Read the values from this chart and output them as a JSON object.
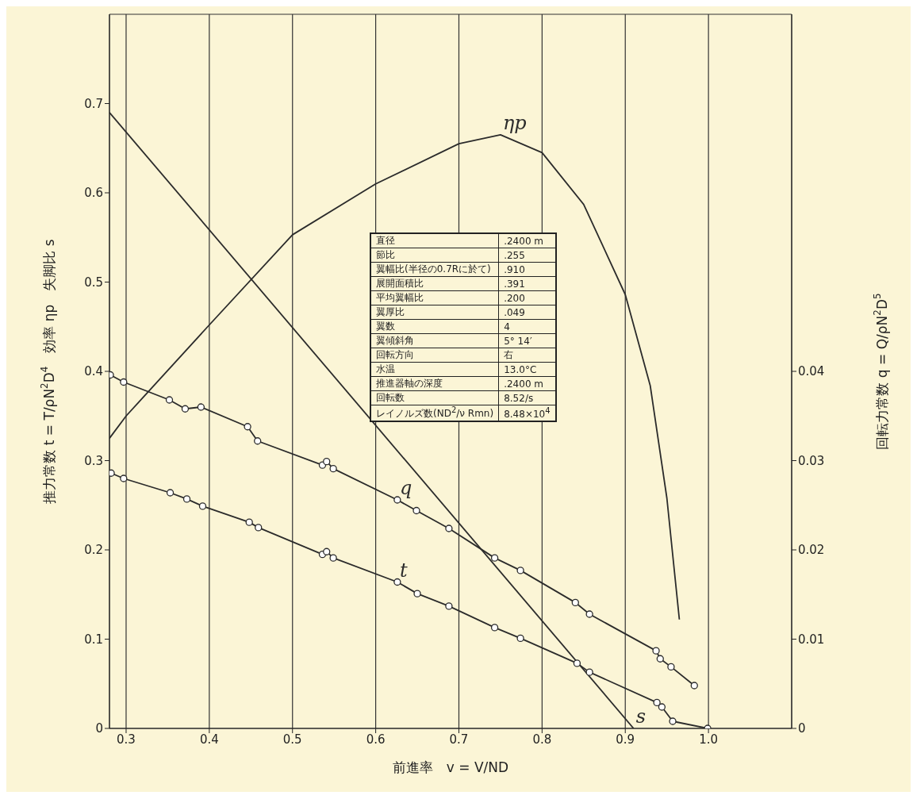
{
  "chart_data": {
    "type": "line",
    "xlabel": "前進率　v = V/ND",
    "ylabel": "推力常数 t = T/ρN$^{2}$D$^{4}$　効率 ηp　失脚比 s",
    "y2label": "回転力常数 q = Q/ρN$^{2}$D$^{5}$",
    "xlim": [
      0.28,
      1.1
    ],
    "xticks": [
      0.3,
      0.4,
      0.5,
      0.6,
      0.7,
      0.8,
      0.9,
      {
        "value": 1,
        "label": "1.0"
      }
    ],
    "ylim": [
      0,
      0.8
    ],
    "yticks": [
      0,
      0.1,
      0.2,
      0.3,
      0.4,
      0.5,
      0.6,
      0.7
    ],
    "y2lim": [
      0,
      0.08
    ],
    "y2ticks": [
      0,
      0.01,
      0.02,
      0.03,
      0.04
    ],
    "grid": true,
    "series": [
      {
        "name": "ηp",
        "color": "#2b2b2b",
        "marker": "none",
        "x": [
          0.28,
          0.3,
          0.4,
          0.5,
          0.6,
          0.7,
          0.75,
          0.8,
          0.85,
          0.9,
          0.93,
          0.95,
          0.965
        ],
        "values": [
          0.325,
          0.35,
          0.452,
          0.553,
          0.61,
          0.655,
          0.665,
          0.645,
          0.587,
          0.486,
          0.384,
          0.258,
          0.122
        ]
      },
      {
        "name": "s",
        "color": "#2b2b2b",
        "marker": "none",
        "x": [
          0.28,
          0.91
        ],
        "values": [
          0.69,
          0.0
        ]
      },
      {
        "name": "q",
        "color": "#2b2b2b",
        "marker": "circle",
        "axis": "y2",
        "x": [
          0.281,
          0.297,
          0.352,
          0.371,
          0.39,
          0.446,
          0.458,
          0.536,
          0.541,
          0.549,
          0.626,
          0.649,
          0.688,
          0.743,
          0.774,
          0.84,
          0.857,
          0.937,
          0.942,
          0.955,
          0.983
        ],
        "values": [
          0.0396,
          0.0388,
          0.0368,
          0.0358,
          0.036,
          0.0338,
          0.0322,
          0.0295,
          0.0299,
          0.0291,
          0.0256,
          0.0244,
          0.0224,
          0.0191,
          0.0177,
          0.0141,
          0.0128,
          0.0087,
          0.0078,
          0.0069,
          0.0048
        ]
      },
      {
        "name": "t",
        "color": "#2b2b2b",
        "marker": "circle",
        "x": [
          0.282,
          0.297,
          0.353,
          0.373,
          0.392,
          0.448,
          0.459,
          0.536,
          0.541,
          0.549,
          0.626,
          0.65,
          0.688,
          0.743,
          0.774,
          0.842,
          0.857,
          0.938,
          0.944,
          0.957,
          0.999
        ],
        "values": [
          0.286,
          0.28,
          0.264,
          0.257,
          0.249,
          0.231,
          0.225,
          0.195,
          0.198,
          0.191,
          0.164,
          0.151,
          0.137,
          0.113,
          0.101,
          0.073,
          0.063,
          0.029,
          0.024,
          0.008,
          0.0
        ]
      }
    ],
    "annotations": [
      "直径",
      ".2400 m",
      "節比",
      ".255",
      "翼幅比(半径の0.7Rに於て)",
      ".910",
      "展開面積比",
      ".391",
      "平均翼幅比",
      ".200",
      "翼厚比",
      ".049",
      "翼数",
      "4",
      "翼傾斜角",
      "5° 14′",
      "回転方向",
      "右",
      "水温",
      "13.0°C",
      "推進器軸の深度",
      ".2400 m",
      "回転数",
      "8.52/s",
      "レイノルズ数(ND$^{2}$/ν Rmn)",
      "8.48×10$^{4}$"
    ]
  }
}
